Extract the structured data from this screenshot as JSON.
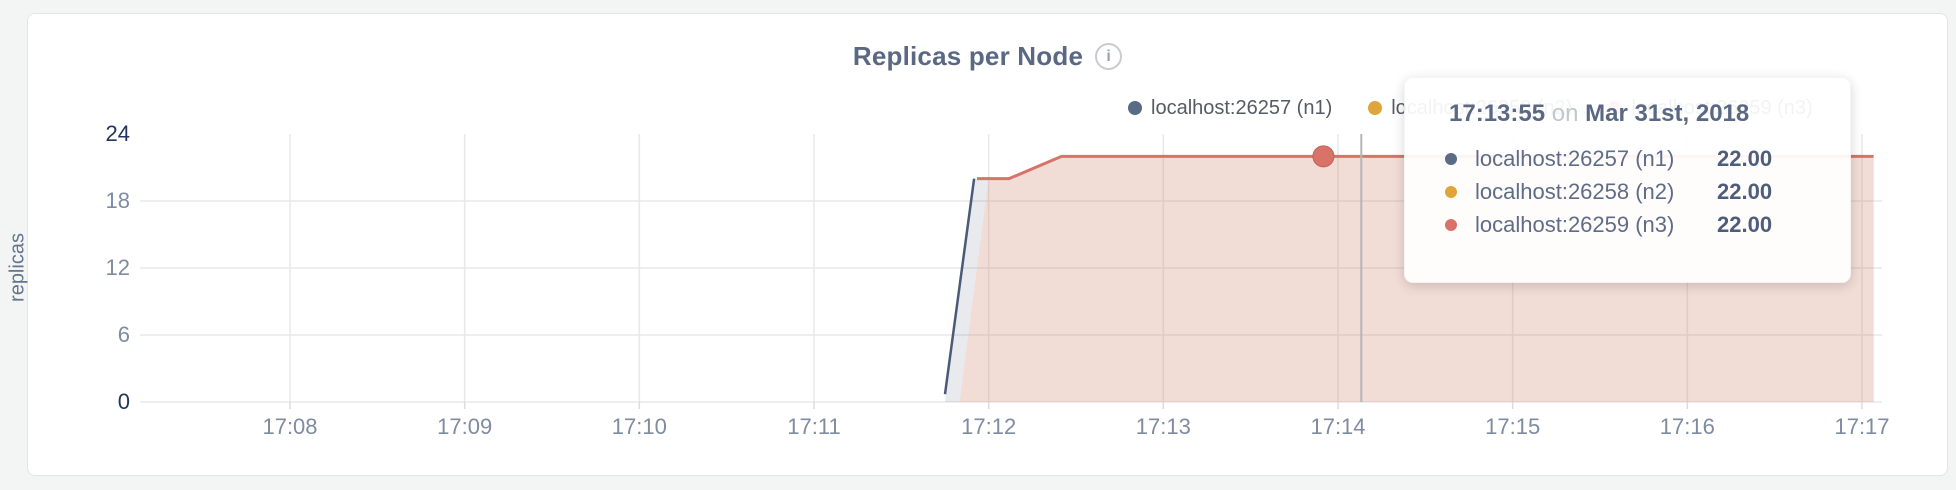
{
  "header": {
    "title": "Replicas per Node",
    "info_icon_glyph": "i"
  },
  "legend": {
    "items": [
      {
        "label": "localhost:26257 (n1)",
        "color": "#5a6b85"
      },
      {
        "label": "localhost:26258 (n2)",
        "color": "#dea63a"
      },
      {
        "label": "localhost:26259 (n3)",
        "color": "#d97269"
      }
    ]
  },
  "tooltip": {
    "time": "17:13:55",
    "on_word": "on",
    "date": "Mar 31st, 2018",
    "rows": [
      {
        "label": "localhost:26257 (n1)",
        "value": "22.00",
        "color": "#5a6b85"
      },
      {
        "label": "localhost:26258 (n2)",
        "value": "22.00",
        "color": "#dea63a"
      },
      {
        "label": "localhost:26259 (n3)",
        "value": "22.00",
        "color": "#d97269"
      }
    ]
  },
  "chart_data": {
    "type": "area",
    "title": "Replicas per Node",
    "xlabel": "",
    "ylabel": "replicas",
    "ylim": [
      0,
      24
    ],
    "grid": true,
    "legend_position": "top-right",
    "y_ticks": [
      0,
      6,
      12,
      18,
      24
    ],
    "x_tick_labels": [
      "17:08",
      "17:09",
      "17:10",
      "17:11",
      "17:12",
      "17:13",
      "17:14",
      "17:15",
      "17:16",
      "17:17"
    ],
    "x_tick_seconds": [
      61680,
      61740,
      61800,
      61860,
      61920,
      61980,
      62040,
      62100,
      62160,
      62220
    ],
    "series": [
      {
        "name": "localhost:26257 (n1)",
        "color": "#5a6b85",
        "points": [
          [
            "17:11:45",
            1
          ],
          [
            "17:11:55",
            20
          ],
          [
            "17:12:06",
            20
          ],
          [
            "17:12:25",
            22
          ],
          [
            "17:17:04",
            22
          ]
        ]
      },
      {
        "name": "localhost:26258 (n2)",
        "color": "#dea63a",
        "points": [
          [
            "17:11:50",
            0
          ],
          [
            "17:12:00",
            20
          ],
          [
            "17:12:07",
            20
          ],
          [
            "17:12:25",
            22
          ],
          [
            "17:17:04",
            22
          ]
        ]
      },
      {
        "name": "localhost:26259 (n3)",
        "color": "#d97269",
        "points": [
          [
            "17:11:50",
            0
          ],
          [
            "17:12:00",
            20
          ],
          [
            "17:12:07",
            20
          ],
          [
            "17:12:25",
            22
          ],
          [
            "17:17:04",
            22
          ]
        ]
      }
    ],
    "hover": {
      "time": "17:13:55",
      "sec": 62035,
      "guideline_sec": 62048,
      "value": 22,
      "dot_color": "#d97269"
    },
    "render_series": [
      {
        "color": "#4a5a77",
        "stroke_width": 2.5,
        "line_pts": [
          [
            61905,
            0.7
          ],
          [
            61915,
            20
          ]
        ],
        "area_pts": [
          [
            61905,
            0
          ],
          [
            61915,
            20
          ],
          [
            61920,
            20
          ],
          [
            61910,
            0
          ]
        ],
        "fill": "rgba(74,90,119,0.13)"
      },
      {
        "color": "#d97269",
        "stroke_width": 3,
        "line_pts": [
          [
            61916,
            20
          ],
          [
            61927,
            20
          ],
          [
            61945,
            22
          ],
          [
            62224,
            22
          ]
        ],
        "area_pts": [
          [
            61910,
            0
          ],
          [
            61920,
            20
          ],
          [
            61927,
            20
          ],
          [
            61945,
            22
          ],
          [
            62224,
            22
          ],
          [
            62224,
            0
          ]
        ],
        "fill": "rgba(206,120,95,0.26)"
      }
    ]
  },
  "colors": {
    "grid": "#e8e8e8",
    "tick_stub": "#dcdcdc",
    "guideline": "#b4b6b8",
    "accent_red": "#d97269",
    "accent_yellow": "#dea63a",
    "accent_slate": "#5a6b85"
  }
}
